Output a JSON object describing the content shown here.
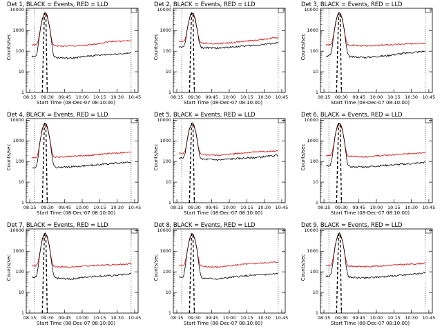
{
  "chart_data": [
    {
      "type": "line",
      "title": "Det 1, BLACK = Events, RED = LLD",
      "xlabel": "Start Time (08-Dec-07 08:10:00)",
      "ylabel": "Counts/sec",
      "red_base": [
        200,
        180,
        175,
        200,
        300,
        320
      ],
      "black_base": [
        55,
        50,
        45,
        60,
        70,
        80
      ],
      "peak_x": "09:30"
    },
    {
      "type": "line",
      "title": "Det 2, BLACK = Events, RED = LLD",
      "xlabel": "Start Time (08-Dec-07 08:10:00)",
      "ylabel": "Counts/sec",
      "red_base": [
        300,
        250,
        230,
        280,
        350,
        450
      ],
      "black_base": [
        160,
        150,
        140,
        170,
        200,
        250
      ],
      "peak_x": "09:30"
    },
    {
      "type": "line",
      "title": "Det 3, BLACK = Events, RED = LLD",
      "xlabel": "Start Time (08-Dec-07 08:10:00)",
      "ylabel": "Counts/sec",
      "red_base": [
        200,
        200,
        180,
        200,
        220,
        250
      ],
      "black_base": [
        60,
        55,
        50,
        60,
        80,
        100
      ],
      "peak_x": "09:30"
    },
    {
      "type": "line",
      "title": "Det 4, BLACK = Events, RED = LLD",
      "xlabel": "Start Time (08-Dec-07 08:10:00)",
      "ylabel": "Counts/sec",
      "red_base": [
        150,
        160,
        180,
        200,
        250,
        280
      ],
      "black_base": [
        50,
        50,
        55,
        65,
        80,
        90
      ],
      "peak_x": "09:30"
    },
    {
      "type": "line",
      "title": "Det 5, BLACK = Events, RED = LLD",
      "xlabel": "Start Time (08-Dec-07 08:10:00)",
      "ylabel": "Counts/sec",
      "red_base": [
        250,
        220,
        200,
        250,
        300,
        320
      ],
      "black_base": [
        150,
        130,
        120,
        140,
        160,
        200
      ],
      "peak_x": "09:30"
    },
    {
      "type": "line",
      "title": "Det 6, BLACK = Events, RED = LLD",
      "xlabel": "Start Time (08-Dec-07 08:10:00)",
      "ylabel": "Counts/sec",
      "red_base": [
        200,
        180,
        170,
        200,
        230,
        280
      ],
      "black_base": [
        60,
        55,
        55,
        65,
        75,
        90
      ],
      "peak_x": "09:30"
    },
    {
      "type": "line",
      "title": "Det 7, BLACK = Events, RED = LLD",
      "xlabel": "Start Time (08-Dec-07 08:10:00)",
      "ylabel": "Counts/sec",
      "red_base": [
        200,
        180,
        170,
        200,
        220,
        250
      ],
      "black_base": [
        55,
        50,
        45,
        60,
        65,
        80
      ],
      "peak_x": "09:30"
    },
    {
      "type": "line",
      "title": "Det 8, BLACK = Events, RED = LLD",
      "xlabel": "Start Time (08-Dec-07 08:10:00)",
      "ylabel": "Counts/sec",
      "red_base": [
        200,
        180,
        170,
        220,
        260,
        300
      ],
      "black_base": [
        55,
        50,
        45,
        60,
        70,
        80
      ],
      "peak_x": "09:30"
    },
    {
      "type": "line",
      "title": "Det 9, BLACK = Events, RED = LLD",
      "xlabel": "Start Time (08-Dec-07 08:10:00)",
      "ylabel": "Counts/sec",
      "red_base": [
        200,
        190,
        180,
        200,
        230,
        260
      ],
      "black_base": [
        60,
        55,
        50,
        60,
        70,
        90
      ],
      "peak_x": "09:30"
    }
  ],
  "axes": {
    "yticks": [
      "1",
      "10",
      "100",
      "1000",
      "10000"
    ],
    "xticks": [
      "08:15",
      "09:30",
      "09:45",
      "10:00",
      "10:15",
      "10:30",
      "10:45"
    ],
    "ylim": [
      1,
      12000
    ],
    "peak_value": 7000,
    "colors": {
      "events": "#000000",
      "lld": "#d40000"
    }
  }
}
